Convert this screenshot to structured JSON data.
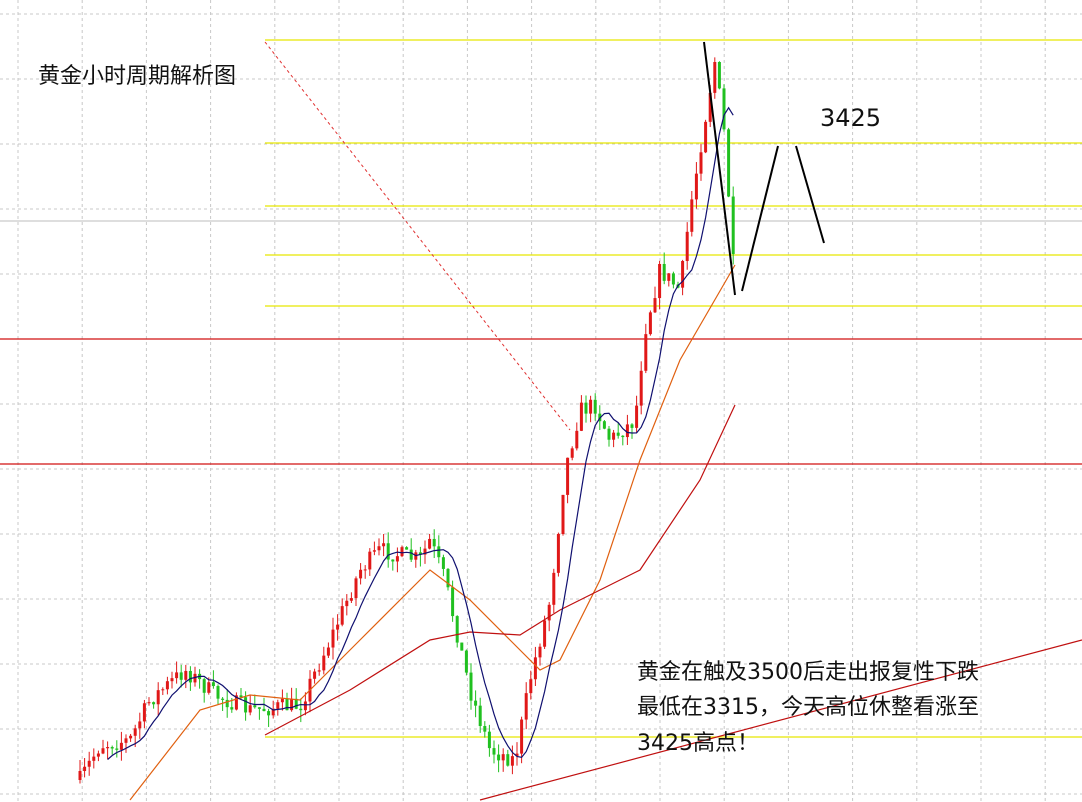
{
  "title": "黄金小时周期解析图",
  "price_label": "3425",
  "annotation": {
    "lines": [
      "黄金在触及3500后走出报复性下跌",
      "最低在3315，今天高位休整看涨至",
      "3425高点！"
    ]
  }
}
